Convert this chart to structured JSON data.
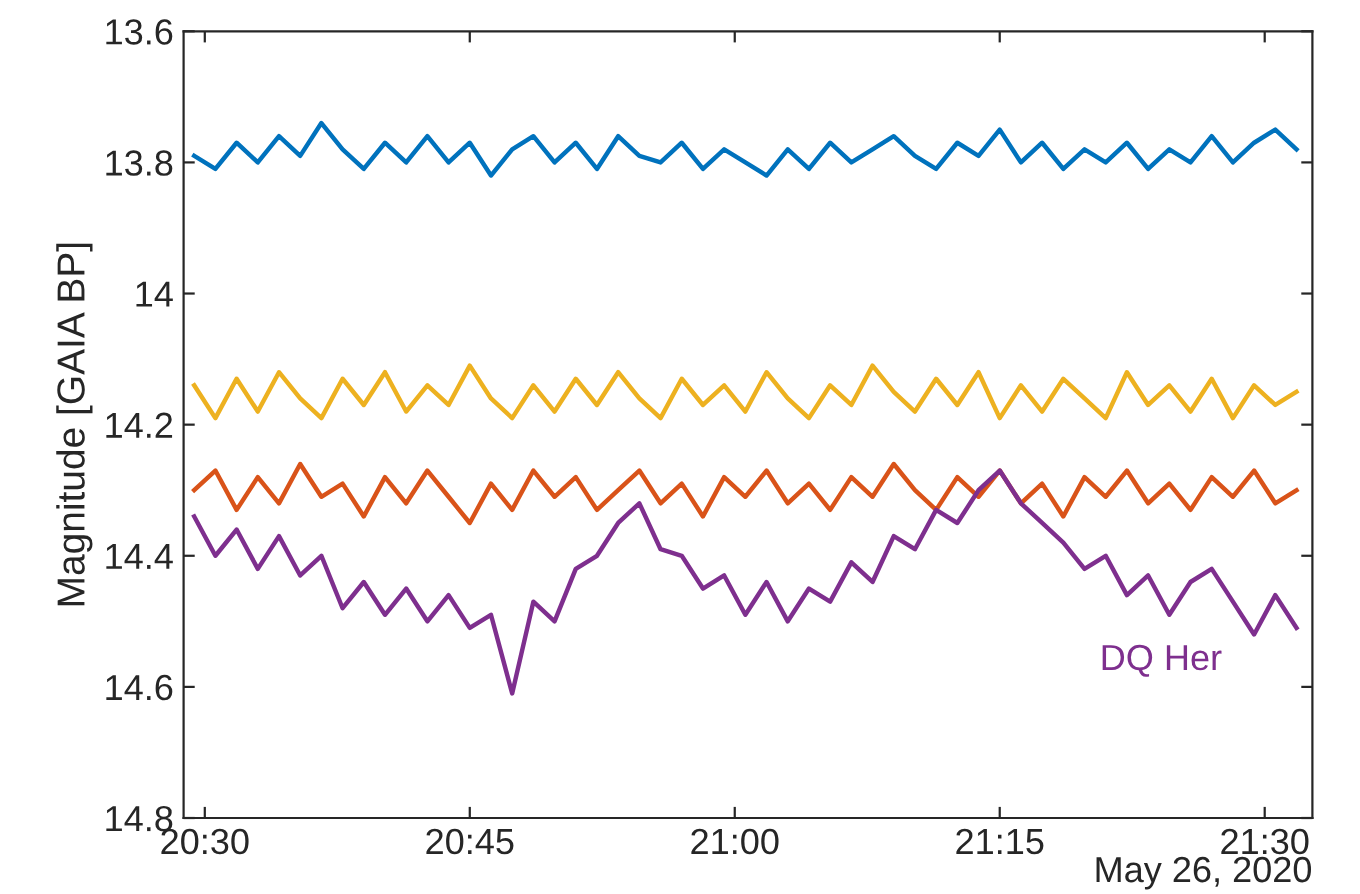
{
  "chart_data": {
    "type": "line",
    "ylabel": "Magnitude [GAIA BP]",
    "x": [
      20.49,
      20.51,
      20.53,
      20.55,
      20.57,
      20.59,
      20.61,
      20.63,
      20.65,
      20.67,
      20.69,
      20.71,
      20.73,
      20.75,
      20.77,
      20.79,
      20.81,
      20.83,
      20.85,
      20.87,
      20.89,
      20.91,
      20.93,
      20.95,
      20.97,
      20.99,
      21.01,
      21.03,
      21.05,
      21.07,
      21.09,
      21.11,
      21.13,
      21.15,
      21.17,
      21.19,
      21.21,
      21.23,
      21.25,
      21.27,
      21.29,
      21.31,
      21.33,
      21.35,
      21.37,
      21.39,
      21.41,
      21.43,
      21.45,
      21.47,
      21.49,
      21.51,
      21.53
    ],
    "series": [
      {
        "color": "#0072bd",
        "values": [
          13.79,
          13.81,
          13.77,
          13.8,
          13.76,
          13.79,
          13.74,
          13.78,
          13.81,
          13.77,
          13.8,
          13.76,
          13.8,
          13.77,
          13.82,
          13.78,
          13.76,
          13.8,
          13.77,
          13.81,
          13.76,
          13.79,
          13.8,
          13.77,
          13.81,
          13.78,
          13.8,
          13.82,
          13.78,
          13.81,
          13.77,
          13.8,
          13.78,
          13.76,
          13.79,
          13.81,
          13.77,
          13.79,
          13.75,
          13.8,
          13.77,
          13.81,
          13.78,
          13.8,
          13.77,
          13.81,
          13.78,
          13.8,
          13.76,
          13.8,
          13.77,
          13.75,
          13.78
        ]
      },
      {
        "color": "#edb120",
        "values": [
          14.14,
          14.19,
          14.13,
          14.18,
          14.12,
          14.16,
          14.19,
          14.13,
          14.17,
          14.12,
          14.18,
          14.14,
          14.17,
          14.11,
          14.16,
          14.19,
          14.14,
          14.18,
          14.13,
          14.17,
          14.12,
          14.16,
          14.19,
          14.13,
          14.17,
          14.14,
          14.18,
          14.12,
          14.16,
          14.19,
          14.14,
          14.17,
          14.11,
          14.15,
          14.18,
          14.13,
          14.17,
          14.12,
          14.19,
          14.14,
          14.18,
          14.13,
          14.16,
          14.19,
          14.12,
          14.17,
          14.14,
          14.18,
          14.13,
          14.19,
          14.14,
          14.17,
          14.15
        ]
      },
      {
        "color": "#d95319",
        "values": [
          14.3,
          14.27,
          14.33,
          14.28,
          14.32,
          14.26,
          14.31,
          14.29,
          14.34,
          14.28,
          14.32,
          14.27,
          14.31,
          14.35,
          14.29,
          14.33,
          14.27,
          14.31,
          14.28,
          14.33,
          14.3,
          14.27,
          14.32,
          14.29,
          14.34,
          14.28,
          14.31,
          14.27,
          14.32,
          14.29,
          14.33,
          14.28,
          14.31,
          14.26,
          14.3,
          14.33,
          14.28,
          14.31,
          14.27,
          14.32,
          14.29,
          14.34,
          14.28,
          14.31,
          14.27,
          14.32,
          14.29,
          14.33,
          14.28,
          14.31,
          14.27,
          14.32,
          14.3
        ]
      },
      {
        "name": "DQ Her",
        "color": "#7e2f8e",
        "values": [
          14.34,
          14.4,
          14.36,
          14.42,
          14.37,
          14.43,
          14.4,
          14.48,
          14.44,
          14.49,
          14.45,
          14.5,
          14.46,
          14.51,
          14.49,
          14.61,
          14.47,
          14.5,
          14.42,
          14.4,
          14.35,
          14.32,
          14.39,
          14.4,
          14.45,
          14.43,
          14.49,
          14.44,
          14.5,
          14.45,
          14.47,
          14.41,
          14.44,
          14.37,
          14.39,
          14.33,
          14.35,
          14.3,
          14.27,
          14.32,
          14.35,
          14.38,
          14.42,
          14.4,
          14.46,
          14.43,
          14.49,
          14.44,
          14.42,
          14.47,
          14.52,
          14.46,
          14.51
        ]
      }
    ],
    "xlim": [
      20.48,
      21.545
    ],
    "ylim": [
      14.8,
      13.6
    ],
    "xticks": [
      {
        "value": 20.5,
        "label": "20:30"
      },
      {
        "value": 20.75,
        "label": "20:45"
      },
      {
        "value": 21.0,
        "label": "21:00"
      },
      {
        "value": 21.25,
        "label": "21:15"
      },
      {
        "value": 21.5,
        "label": "21:30"
      }
    ],
    "yticks": [
      {
        "value": 13.6,
        "label": "13.6"
      },
      {
        "value": 13.8,
        "label": "13.8"
      },
      {
        "value": 14.0,
        "label": "14"
      },
      {
        "value": 14.2,
        "label": "14.2"
      },
      {
        "value": 14.4,
        "label": "14.4"
      },
      {
        "value": 14.6,
        "label": "14.6"
      },
      {
        "value": 14.8,
        "label": "14.8"
      }
    ],
    "annotations": [
      "May 26, 2020"
    ],
    "grid": false,
    "legend": false
  }
}
